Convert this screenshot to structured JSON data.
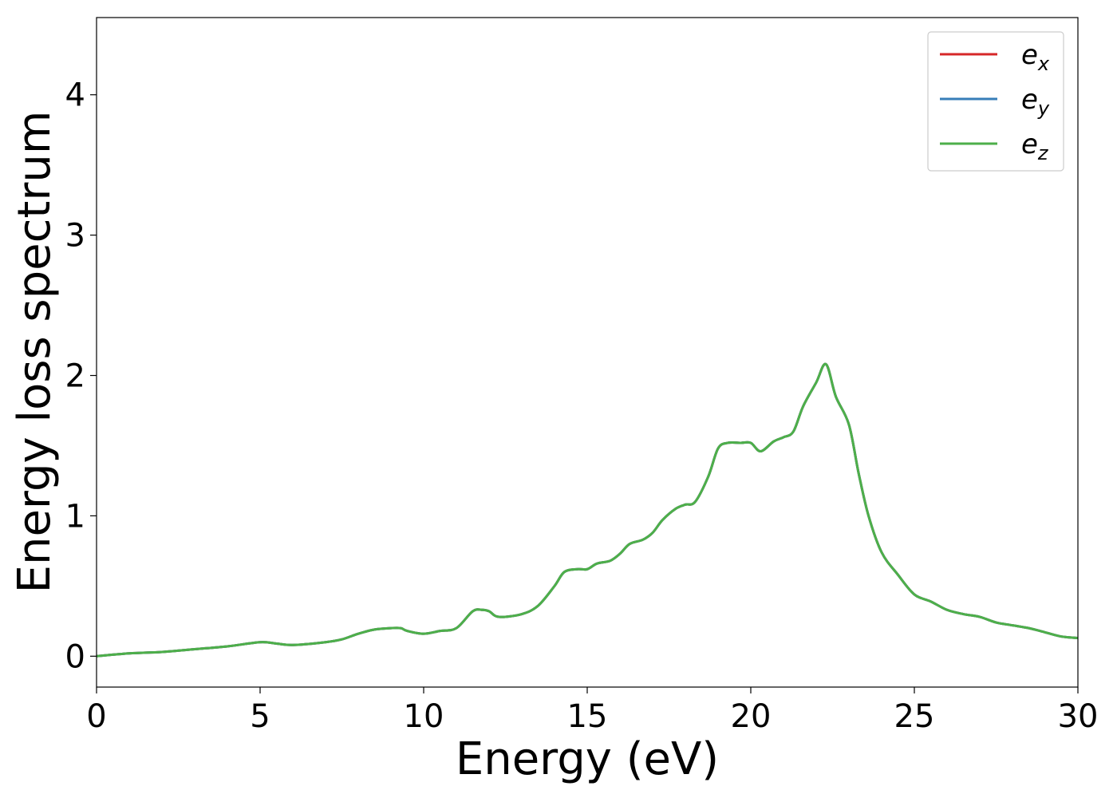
{
  "chart_data": {
    "type": "line",
    "title": "",
    "xlabel": "Energy (eV)",
    "ylabel": "Energy loss spectrum",
    "xlim": [
      0,
      30
    ],
    "ylim": [
      -0.22,
      4.55
    ],
    "xticks": [
      "0",
      "5",
      "10",
      "15",
      "20",
      "25",
      "30"
    ],
    "yticks": [
      "0",
      "1",
      "2",
      "3",
      "4"
    ],
    "grid": false,
    "legend_position": "top-right",
    "series": [
      {
        "name": "e",
        "subscript": "x",
        "color": "#d62728"
      },
      {
        "name": "e",
        "subscript": "y",
        "color": "#377eb8"
      },
      {
        "name": "e",
        "subscript": "z",
        "color": "#4daf4a"
      }
    ],
    "x": [
      0,
      1,
      2,
      3,
      4,
      5,
      5.5,
      6,
      7,
      7.5,
      8,
      8.5,
      9,
      9.3,
      9.5,
      10,
      10.5,
      11,
      11.5,
      11.8,
      12,
      12.3,
      13,
      13.5,
      14,
      14.3,
      14.7,
      15,
      15.3,
      15.7,
      16,
      16.3,
      16.7,
      17,
      17.3,
      17.7,
      18,
      18.3,
      18.7,
      19,
      19.3,
      19.7,
      20,
      20.3,
      20.7,
      21,
      21.3,
      21.6,
      22,
      22.3,
      22.6,
      23,
      23.3,
      23.6,
      24,
      24.5,
      25,
      25.5,
      26,
      26.5,
      27,
      27.5,
      28,
      28.5,
      29,
      29.5,
      30
    ],
    "y": [
      0.0,
      0.02,
      0.03,
      0.05,
      0.07,
      0.1,
      0.09,
      0.08,
      0.1,
      0.12,
      0.16,
      0.19,
      0.2,
      0.2,
      0.18,
      0.16,
      0.18,
      0.2,
      0.32,
      0.33,
      0.32,
      0.28,
      0.3,
      0.36,
      0.5,
      0.6,
      0.62,
      0.62,
      0.66,
      0.68,
      0.73,
      0.8,
      0.83,
      0.88,
      0.97,
      1.05,
      1.08,
      1.1,
      1.28,
      1.48,
      1.52,
      1.52,
      1.52,
      1.46,
      1.53,
      1.56,
      1.6,
      1.78,
      1.95,
      2.08,
      1.85,
      1.65,
      1.3,
      1.0,
      0.74,
      0.58,
      0.44,
      0.39,
      0.33,
      0.3,
      0.28,
      0.24,
      0.22,
      0.2,
      0.17,
      0.14,
      0.13
    ]
  }
}
